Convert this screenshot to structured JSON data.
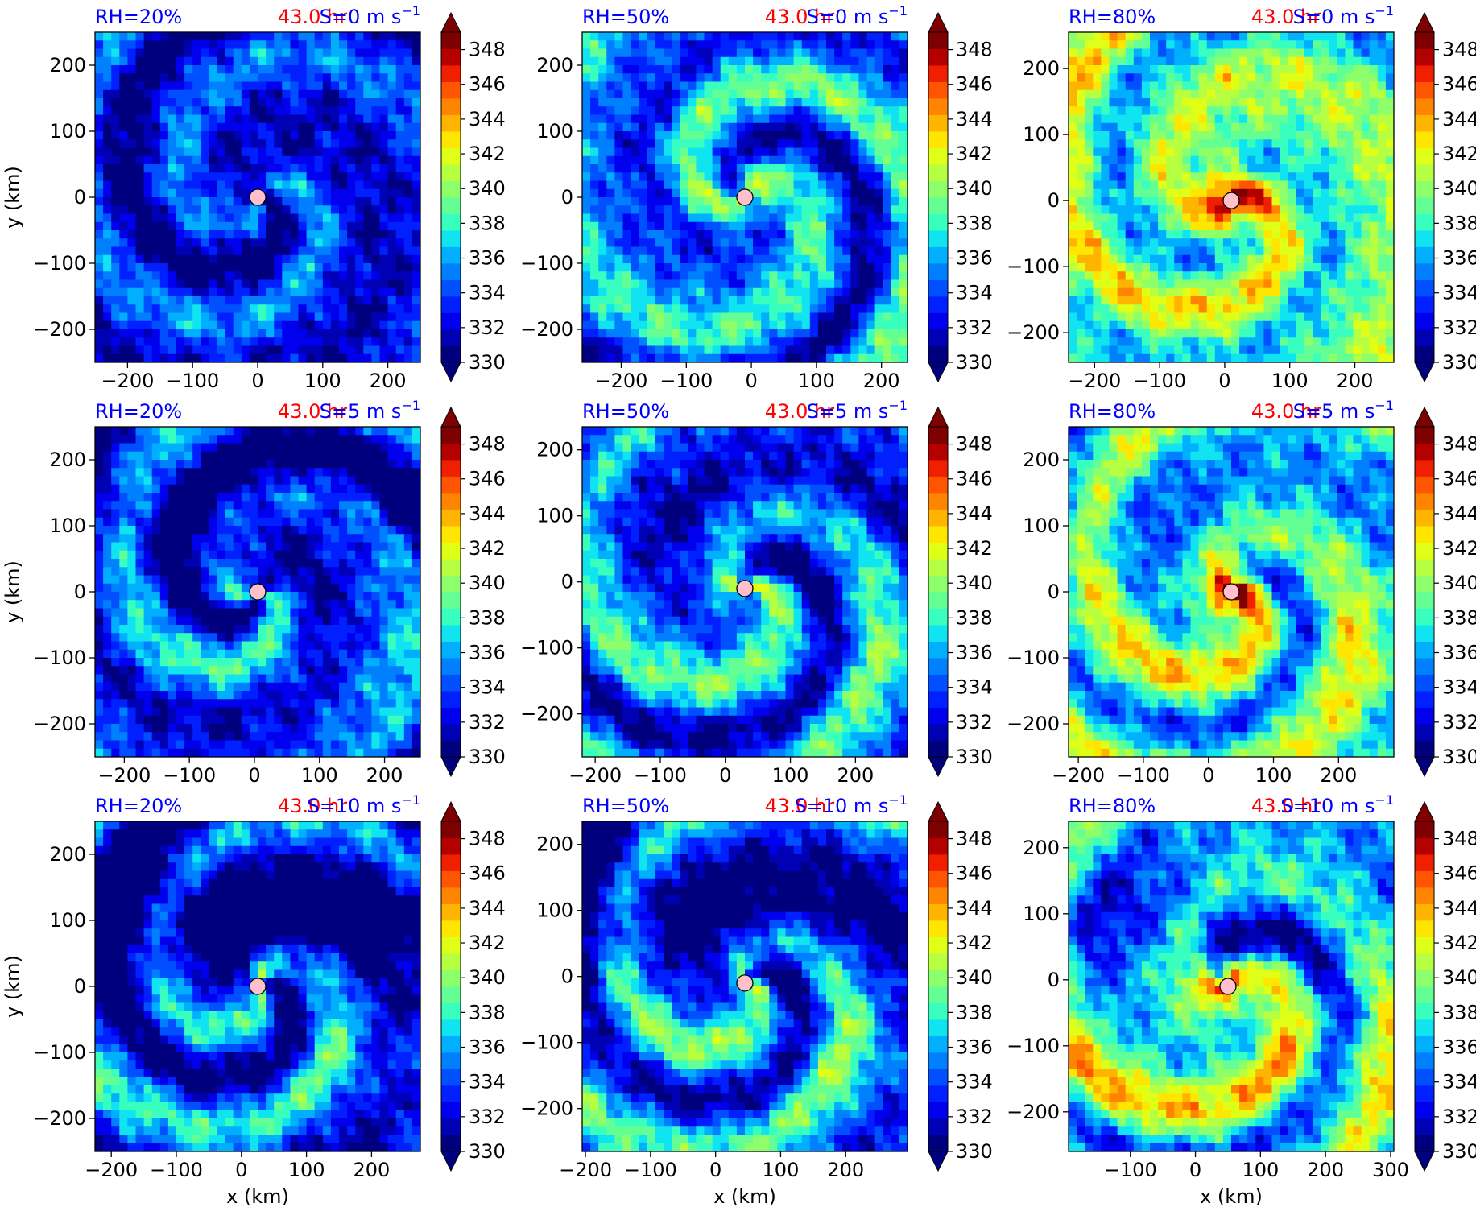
{
  "colormap": {
    "levels": [
      330,
      331,
      332,
      333,
      334,
      335,
      336,
      337,
      338,
      339,
      340,
      341,
      342,
      343,
      344,
      345,
      346,
      347,
      348,
      349
    ],
    "colors": [
      "#00007f",
      "#0000b5",
      "#0000ee",
      "#0020ff",
      "#0050ff",
      "#0080ff",
      "#00b0ff",
      "#10e4f0",
      "#39ffbe",
      "#63ff94",
      "#8cff6a",
      "#b6ff41",
      "#e0ff17",
      "#ffe600",
      "#ffb400",
      "#ff8500",
      "#ff5500",
      "#f01f00",
      "#b50000",
      "#7f0000"
    ],
    "under_color": "#00007f",
    "over_color": "#7f0000",
    "tick_labels": [
      "330",
      "332",
      "334",
      "336",
      "338",
      "340",
      "342",
      "344",
      "346",
      "348"
    ]
  },
  "row_wind": [
    "S=0 m s",
    "S=5 m s",
    "S=10 m s"
  ],
  "col_rh": [
    "RH=20%",
    "RH=50%",
    "RH=80%"
  ],
  "wind_exponent": "−1",
  "time_label": "43.0 hr",
  "xlabel": "x (km)",
  "ylabel": "y (km)",
  "label_colors": {
    "rh": "#0000ff",
    "time": "#ff0000",
    "wind": "#0000ff"
  },
  "chart_data": [
    {
      "type": "heatmap",
      "rh": "RH=20%",
      "wind": "S=0 m s",
      "time": "43.0 hr",
      "xlim": [
        -250,
        250
      ],
      "ylim": [
        -250,
        250
      ],
      "xticks": [
        -200,
        -100,
        0,
        100,
        200
      ],
      "yticks": [
        -200,
        -100,
        0,
        100,
        200
      ],
      "center": [
        0,
        0
      ],
      "pattern": {
        "kind": "spiral",
        "mean": 333.0,
        "core": 0.5,
        "arms": 1.0
      }
    },
    {
      "type": "heatmap",
      "rh": "RH=50%",
      "wind": "S=0 m s",
      "time": "43.0 hr",
      "xlim": [
        -260,
        240
      ],
      "ylim": [
        -250,
        250
      ],
      "xticks": [
        -200,
        -100,
        0,
        100,
        200
      ],
      "yticks": [
        -200,
        -100,
        0,
        100,
        200
      ],
      "center": [
        -10,
        0
      ],
      "pattern": {
        "kind": "spiral",
        "mean": 335.5,
        "core": 4.0,
        "arms": 1.4
      }
    },
    {
      "type": "heatmap",
      "rh": "RH=80%",
      "wind": "S=0 m s",
      "time": "43.0 hr",
      "xlim": [
        -240,
        260
      ],
      "ylim": [
        -245,
        255
      ],
      "xticks": [
        -200,
        -100,
        0,
        100,
        200
      ],
      "yticks": [
        -200,
        -100,
        0,
        100,
        200
      ],
      "center": [
        10,
        0
      ],
      "pattern": {
        "kind": "spiral",
        "mean": 339.5,
        "core": 10.0,
        "arms": 1.2
      }
    },
    {
      "type": "heatmap",
      "rh": "RH=20%",
      "wind": "S=5 m s",
      "time": "43.0 hr",
      "xlim": [
        -245,
        255
      ],
      "ylim": [
        -250,
        250
      ],
      "xticks": [
        -200,
        -100,
        0,
        100,
        200
      ],
      "yticks": [
        -200,
        -100,
        0,
        100,
        200
      ],
      "center": [
        5,
        0
      ],
      "pattern": {
        "kind": "sheared",
        "mean": 333.5,
        "core": 2.0,
        "arms": 1.3
      }
    },
    {
      "type": "heatmap",
      "rh": "RH=50%",
      "wind": "S=5 m s",
      "time": "43.0 hr",
      "xlim": [
        -220,
        280
      ],
      "ylim": [
        -265,
        235
      ],
      "xticks": [
        -200,
        -100,
        0,
        100,
        200
      ],
      "yticks": [
        -200,
        -100,
        0,
        100,
        200
      ],
      "center": [
        30,
        -10
      ],
      "pattern": {
        "kind": "sheared",
        "mean": 335.0,
        "core": 4.0,
        "arms": 1.4
      }
    },
    {
      "type": "heatmap",
      "rh": "RH=80%",
      "wind": "S=5 m s",
      "time": "43.0 hr",
      "xlim": [
        -215,
        285
      ],
      "ylim": [
        -250,
        250
      ],
      "xticks": [
        -200,
        -100,
        0,
        100,
        200
      ],
      "yticks": [
        -200,
        -100,
        0,
        100,
        200
      ],
      "center": [
        35,
        0
      ],
      "pattern": {
        "kind": "sheared",
        "mean": 338.5,
        "core": 10.0,
        "arms": 1.4
      }
    },
    {
      "type": "heatmap",
      "rh": "RH=20%",
      "wind": "S=10 m s",
      "time": "43.0 hr",
      "xlim": [
        -225,
        275
      ],
      "ylim": [
        -250,
        250
      ],
      "xticks": [
        -200,
        -100,
        0,
        100,
        200
      ],
      "yticks": [
        -200,
        -100,
        0,
        100,
        200
      ],
      "center": [
        25,
        0
      ],
      "pattern": {
        "kind": "strong-shear",
        "mean": 333.0,
        "core": 3.5,
        "arms": 1.5
      }
    },
    {
      "type": "heatmap",
      "rh": "RH=50%",
      "wind": "S=10 m s",
      "time": "43.0 hr",
      "xlim": [
        -205,
        295
      ],
      "ylim": [
        -265,
        235
      ],
      "xticks": [
        -200,
        -100,
        0,
        100,
        200
      ],
      "yticks": [
        -200,
        -100,
        0,
        100,
        200
      ],
      "center": [
        45,
        -10
      ],
      "pattern": {
        "kind": "strong-shear",
        "mean": 334.5,
        "core": 3.0,
        "arms": 1.5
      }
    },
    {
      "type": "heatmap",
      "rh": "RH=80%",
      "wind": "S=10 m s",
      "time": "43.0 hr",
      "xlim": [
        -195,
        305
      ],
      "ylim": [
        -260,
        240
      ],
      "xticks": [
        -100,
        0,
        100,
        200,
        300
      ],
      "yticks": [
        -200,
        -100,
        0,
        100,
        200
      ],
      "center": [
        50,
        -10
      ],
      "pattern": {
        "kind": "strong-shear",
        "mean": 338.0,
        "core": 7.0,
        "arms": 1.5
      }
    }
  ]
}
